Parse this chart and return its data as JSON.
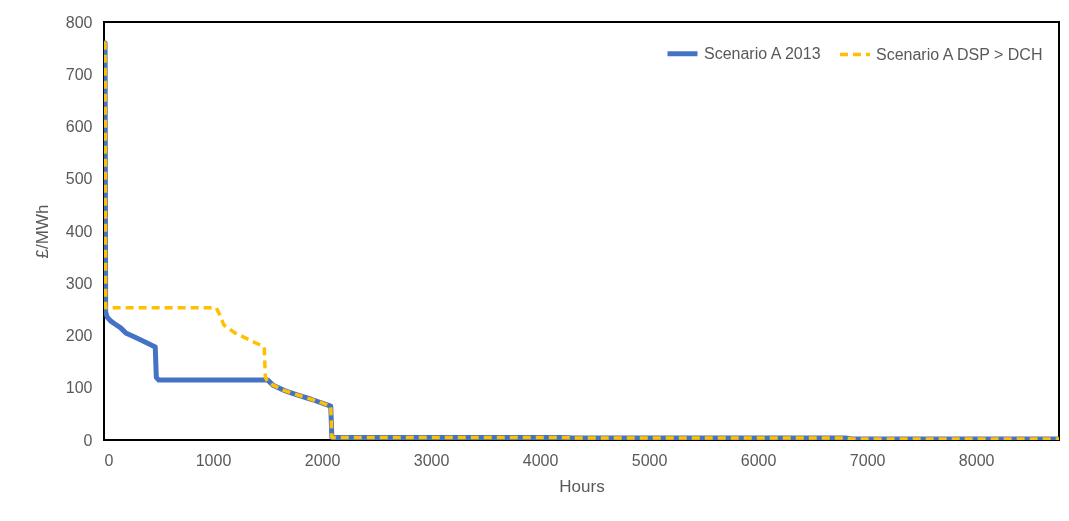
{
  "chart_data": {
    "type": "line",
    "xlabel": "Hours",
    "ylabel": "£/MWh",
    "xlim": [
      0,
      8760
    ],
    "ylim": [
      0,
      800
    ],
    "xticks": [
      0,
      1000,
      2000,
      3000,
      4000,
      5000,
      6000,
      7000,
      8000
    ],
    "yticks": [
      0,
      100,
      200,
      300,
      400,
      500,
      600,
      700,
      800
    ],
    "grid": false,
    "legend": "top right",
    "series": [
      {
        "name": "Scenario A 2013",
        "color": "#4472c4",
        "line_style": "solid",
        "x": [
          0,
          10,
          15,
          30,
          60,
          100,
          150,
          200,
          300,
          400,
          470,
          480,
          500,
          1000,
          1500,
          1550,
          1650,
          1750,
          1900,
          2080,
          2090,
          3000,
          4200,
          4300,
          6800,
          6850,
          8760
        ],
        "values": [
          760,
          760,
          245,
          235,
          228,
          222,
          215,
          205,
          195,
          185,
          178,
          120,
          115,
          115,
          115,
          105,
          95,
          88,
          78,
          65,
          5,
          5,
          5,
          4,
          4,
          2,
          2
        ]
      },
      {
        "name": "Scenario A DSP > DCH",
        "color": "#ffc000",
        "line_style": "dashed",
        "x": [
          0,
          10,
          15,
          500,
          1030,
          1060,
          1100,
          1200,
          1350,
          1470,
          1480,
          1500,
          1550,
          1650,
          1750,
          1900,
          2080,
          2090,
          3000,
          4200,
          4300,
          6800,
          6850,
          8760
        ],
        "values": [
          760,
          760,
          253,
          253,
          253,
          240,
          220,
          205,
          190,
          178,
          120,
          112,
          105,
          95,
          88,
          78,
          65,
          5,
          5,
          5,
          4,
          4,
          2,
          2
        ]
      }
    ]
  }
}
